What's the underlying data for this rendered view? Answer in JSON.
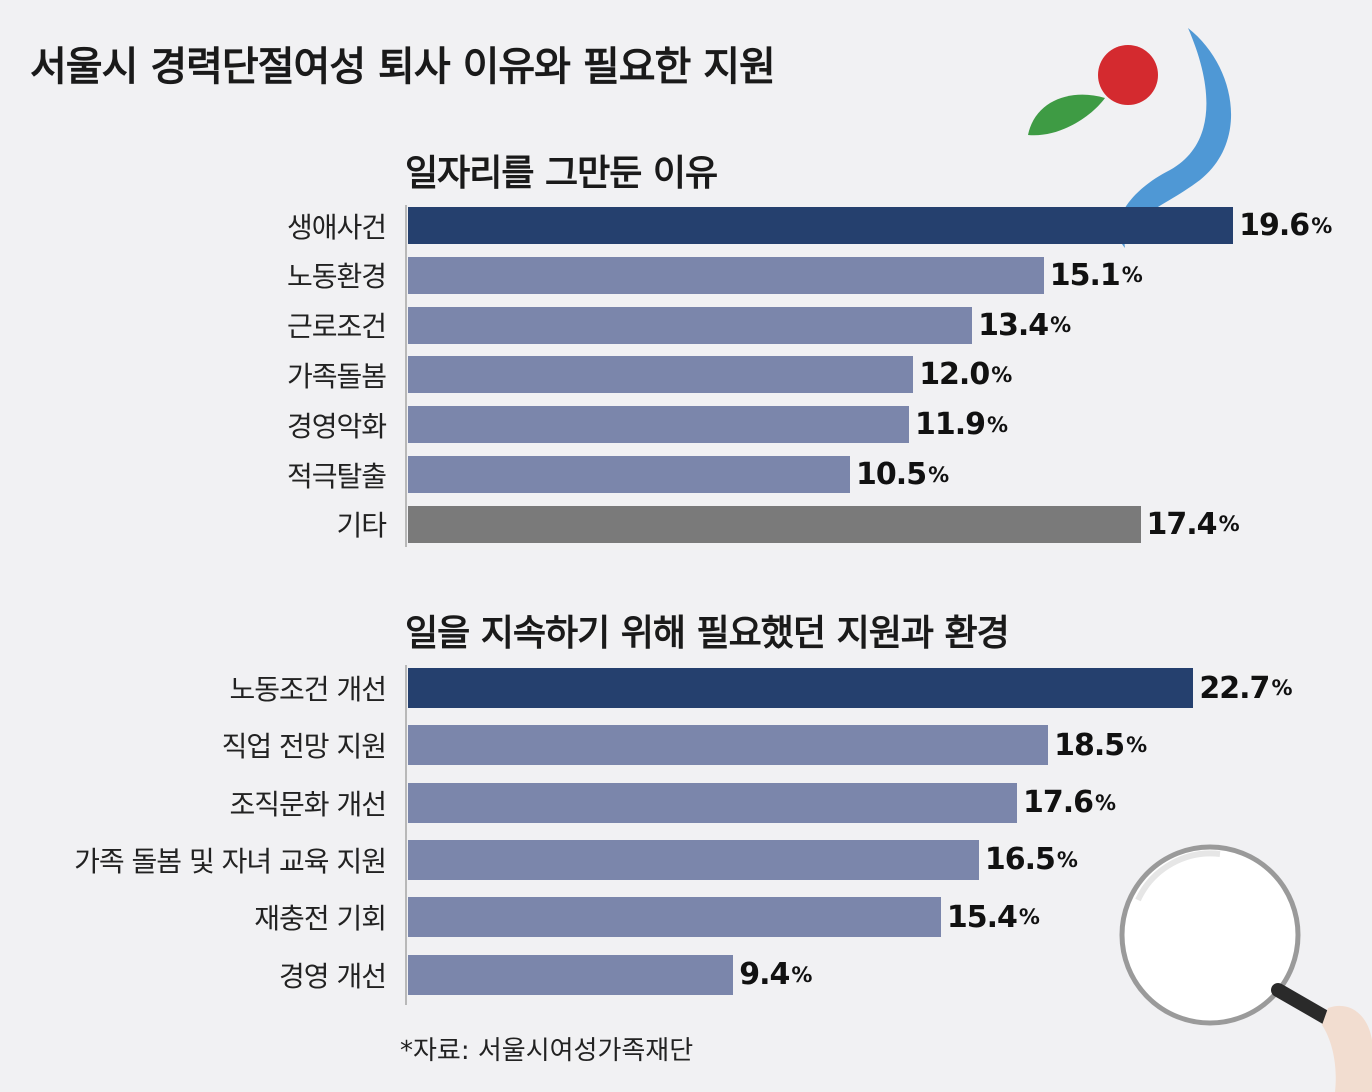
{
  "title": "서울시 경력단절여성 퇴사 이유와 필요한 지원",
  "source": "*자료: 서울시여성가족재단",
  "colors": {
    "highlight": "#25406e",
    "regular": "#7b86ab",
    "other": "#7a7a7a",
    "background": "#f1f1f3"
  },
  "chart_data": [
    {
      "type": "bar",
      "orientation": "horizontal",
      "title": "일자리를 그만둔 이유",
      "categories": [
        "생애사건",
        "노동환경",
        "근로조건",
        "가족돌봄",
        "경영악화",
        "적극탈출",
        "기타"
      ],
      "values": [
        19.6,
        15.1,
        13.4,
        12.0,
        11.9,
        10.5,
        17.4
      ],
      "unit": "%",
      "value_labels": [
        "19.6",
        "15.1",
        "13.4",
        "12.0",
        "11.9",
        "10.5",
        "17.4"
      ],
      "bar_colors": [
        "highlight",
        "regular",
        "regular",
        "regular",
        "regular",
        "regular",
        "other"
      ],
      "grid": false
    },
    {
      "type": "bar",
      "orientation": "horizontal",
      "title": "일을 지속하기 위해 필요했던 지원과 환경",
      "categories": [
        "노동조건 개선",
        "직업 전망 지원",
        "조직문화 개선",
        "가족 돌봄 및 자녀 교육 지원",
        "재충전 기회",
        "경영 개선"
      ],
      "values": [
        22.7,
        18.5,
        17.6,
        16.5,
        15.4,
        9.4
      ],
      "unit": "%",
      "value_labels": [
        "22.7",
        "18.5",
        "17.6",
        "16.5",
        "15.4",
        "9.4"
      ],
      "bar_colors": [
        "highlight",
        "regular",
        "regular",
        "regular",
        "regular",
        "regular"
      ],
      "grid": false
    }
  ]
}
